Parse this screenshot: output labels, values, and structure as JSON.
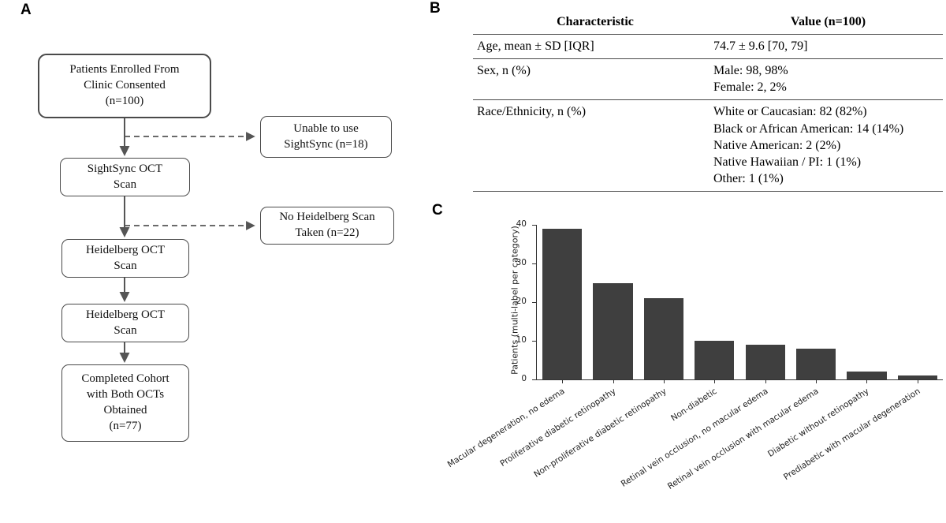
{
  "figure": {
    "panel_a_label": "A",
    "panel_b_label": "B",
    "panel_c_label": "C"
  },
  "flowchart": {
    "boxes": {
      "enrolled": {
        "lines": [
          "Patients Enrolled From",
          "Clinic Consented",
          "(n=100)"
        ]
      },
      "unable": {
        "lines": [
          "Unable to use",
          "SightSync (n=18)"
        ]
      },
      "sightsync": {
        "lines": [
          "SightSync OCT",
          "Scan"
        ]
      },
      "no_scan": {
        "lines": [
          "No Heidelberg Scan",
          "Taken (n=22)"
        ]
      },
      "heidelberg1": {
        "lines": [
          "Heidelberg OCT",
          "Scan"
        ]
      },
      "heidelberg2": {
        "lines": [
          "Heidelberg OCT",
          "Scan"
        ]
      },
      "completed": {
        "lines": [
          "Completed Cohort",
          "with Both OCTs",
          "Obtained",
          "(n=77)"
        ]
      }
    }
  },
  "table": {
    "headers": [
      "Characteristic",
      "Value (n=100)"
    ],
    "rows": [
      {
        "characteristic": "Age, mean ± SD [IQR]",
        "values": [
          "74.7 ± 9.6 [70, 79]"
        ]
      },
      {
        "characteristic": "Sex, n (%)",
        "values": [
          "Male: 98, 98%",
          "Female: 2, 2%"
        ]
      },
      {
        "characteristic": "Race/Ethnicity, n (%)",
        "values": [
          "White or Caucasian: 82 (82%)",
          "Black or African American: 14 (14%)",
          "Native American: 2 (2%)",
          "Native Hawaiian / PI: 1 (1%)",
          "Other: 1 (1%)"
        ]
      }
    ]
  },
  "chart_data": {
    "type": "bar",
    "categories": [
      "Macular degeneration, no edema",
      "Proliferative diabetic retinopathy",
      "Non-proliferative diabetic retinopathy",
      "Non-diabetic",
      "Retinal vein occlusion, no macular edema",
      "Retinal vein occlusion with macular edema",
      "Diabetic without retinopathy",
      "Prediabetic with macular degeneration"
    ],
    "values": [
      39,
      25,
      21,
      10,
      9,
      8,
      2,
      1
    ],
    "title": "",
    "xlabel": "",
    "ylabel": "Patients (multi-label per category)",
    "ylim": [
      0,
      40
    ],
    "yticks": [
      0,
      10,
      20,
      30,
      40
    ],
    "bar_color": "#3f3f3f",
    "grid": false,
    "legend": null
  }
}
